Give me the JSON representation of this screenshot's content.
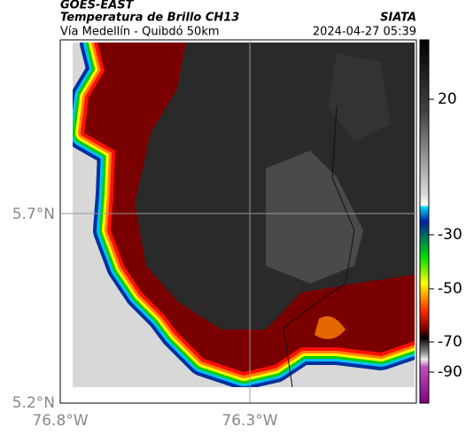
{
  "header": {
    "satellite": "GOES-EAST",
    "product": "Temperatura de Brillo CH13",
    "location": "Vía Medellín - Quibdó 50km",
    "source": "SIATA",
    "datetime": "2024-04-27 05:39"
  },
  "map": {
    "lat_labels": [
      "5.7°N",
      "5.2°N"
    ],
    "lon_labels": [
      "76.8°W",
      "76.3°W"
    ]
  },
  "colorbar": {
    "ticks": [
      20,
      -30,
      -50,
      -70,
      -90
    ]
  }
}
